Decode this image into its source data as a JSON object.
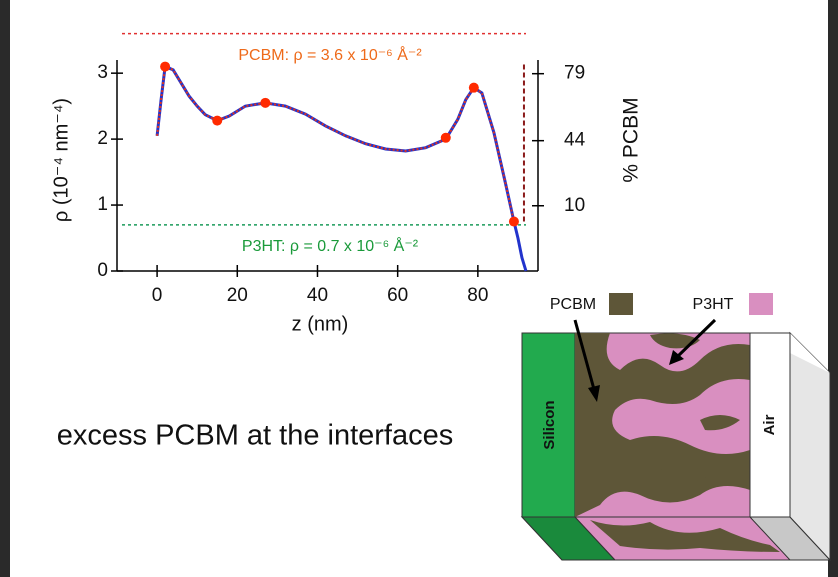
{
  "chart_data": {
    "type": "line",
    "xlabel": "z (nm)",
    "ylabel": "ρ (10⁻⁴ nm⁻⁴)",
    "y2label": "% PCBM",
    "xlim": [
      -10,
      95
    ],
    "xticks": [
      0,
      20,
      40,
      60,
      80
    ],
    "ylim": [
      0,
      3.7
    ],
    "yticks": [
      0,
      1,
      2,
      3
    ],
    "y2lim": [
      -24.1,
      103.4
    ],
    "y2ticks": [
      10,
      44,
      79
    ],
    "x": [
      0,
      1,
      2,
      4,
      6,
      8,
      10,
      12,
      15,
      18,
      22,
      27,
      32,
      37,
      42,
      47,
      52,
      57,
      62,
      67,
      72,
      75,
      77,
      79,
      81,
      84,
      87,
      89,
      90,
      91,
      92
    ],
    "series": [
      {
        "color": "#2233cc",
        "style": "solid",
        "values": [
          2.05,
          2.6,
          3.1,
          3.05,
          2.85,
          2.65,
          2.5,
          2.37,
          2.28,
          2.35,
          2.5,
          2.55,
          2.5,
          2.38,
          2.2,
          2.05,
          1.93,
          1.85,
          1.82,
          1.87,
          2.0,
          2.3,
          2.6,
          2.78,
          2.7,
          2.1,
          1.3,
          0.75,
          0.5,
          0.2,
          0.0
        ]
      },
      {
        "color": "#dd3322",
        "style": "dotted",
        "values": [
          2.05,
          2.6,
          3.1,
          3.05,
          2.85,
          2.65,
          2.5,
          2.37,
          2.28,
          2.35,
          2.5,
          2.55,
          2.5,
          2.38,
          2.2,
          2.05,
          1.93,
          1.85,
          1.82,
          1.87,
          2.0,
          2.3,
          2.6,
          2.78,
          2.7,
          2.1,
          1.3,
          0.75,
          null,
          null,
          null
        ]
      },
      {
        "color": "#8b1a1a",
        "style": "dashed",
        "x": [
          91.5,
          91.5
        ],
        "values": [
          0.75,
          3.15
        ]
      }
    ],
    "points": {
      "color": "#ff2a00",
      "x": [
        2,
        15,
        27,
        72,
        79,
        89
      ],
      "values": [
        3.1,
        2.28,
        2.55,
        2.02,
        2.78,
        0.75
      ]
    },
    "reference_lines": [
      {
        "value": 3.6,
        "color": "#e03030",
        "label": "PCBM: ρ = 3.6 x 10⁻⁶ Å⁻²",
        "label_color": "#ee6a1a"
      },
      {
        "value": 0.7,
        "color": "#1a9a5a",
        "label": "P3HT: ρ = 0.7 x 10⁻⁶ Å⁻²",
        "label_color": "#1a9a3a"
      }
    ]
  },
  "caption": "excess PCBM at the interfaces",
  "diagram": {
    "legend": [
      {
        "label": "PCBM",
        "color": "#5e5638"
      },
      {
        "label": "P3HT",
        "color": "#d98fc0"
      }
    ],
    "layers": [
      "Silicon",
      "Air"
    ]
  }
}
